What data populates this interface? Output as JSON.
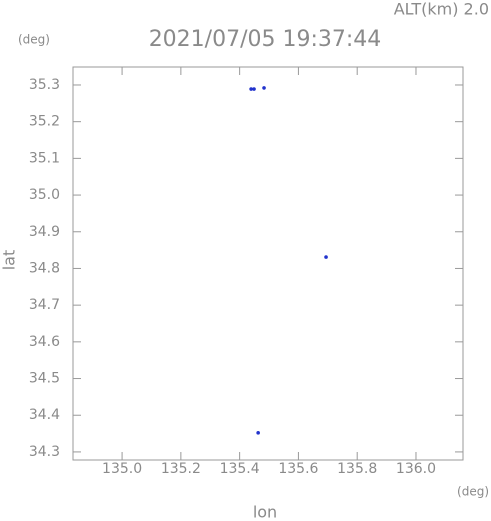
{
  "chart_data": {
    "type": "scatter",
    "title": "2021/07/05 19:37:44",
    "subtitle": "ALT(km) 2.0",
    "x_label": "lon",
    "y_label": "lat",
    "x_unit": "(deg)",
    "y_unit": "(deg)",
    "color": "#2233cc",
    "x": [
      135.439,
      135.449,
      135.483,
      135.463,
      135.694
    ],
    "values": [
      35.289,
      35.289,
      35.292,
      34.352,
      34.831
    ],
    "xlim": [
      134.833,
      136.16
    ],
    "ylim": [
      34.278,
      35.349
    ],
    "xticks": [
      {
        "value": 135.0,
        "label": "135.0"
      },
      135.2,
      135.4,
      135.6,
      135.8,
      {
        "value": 136.0,
        "label": "136.0"
      }
    ],
    "yticks": [
      35.3,
      35.2,
      35.1,
      {
        "value": 35.0,
        "label": "35.0"
      },
      34.9,
      34.8,
      34.7,
      34.6,
      34.5,
      34.4,
      34.3
    ]
  }
}
